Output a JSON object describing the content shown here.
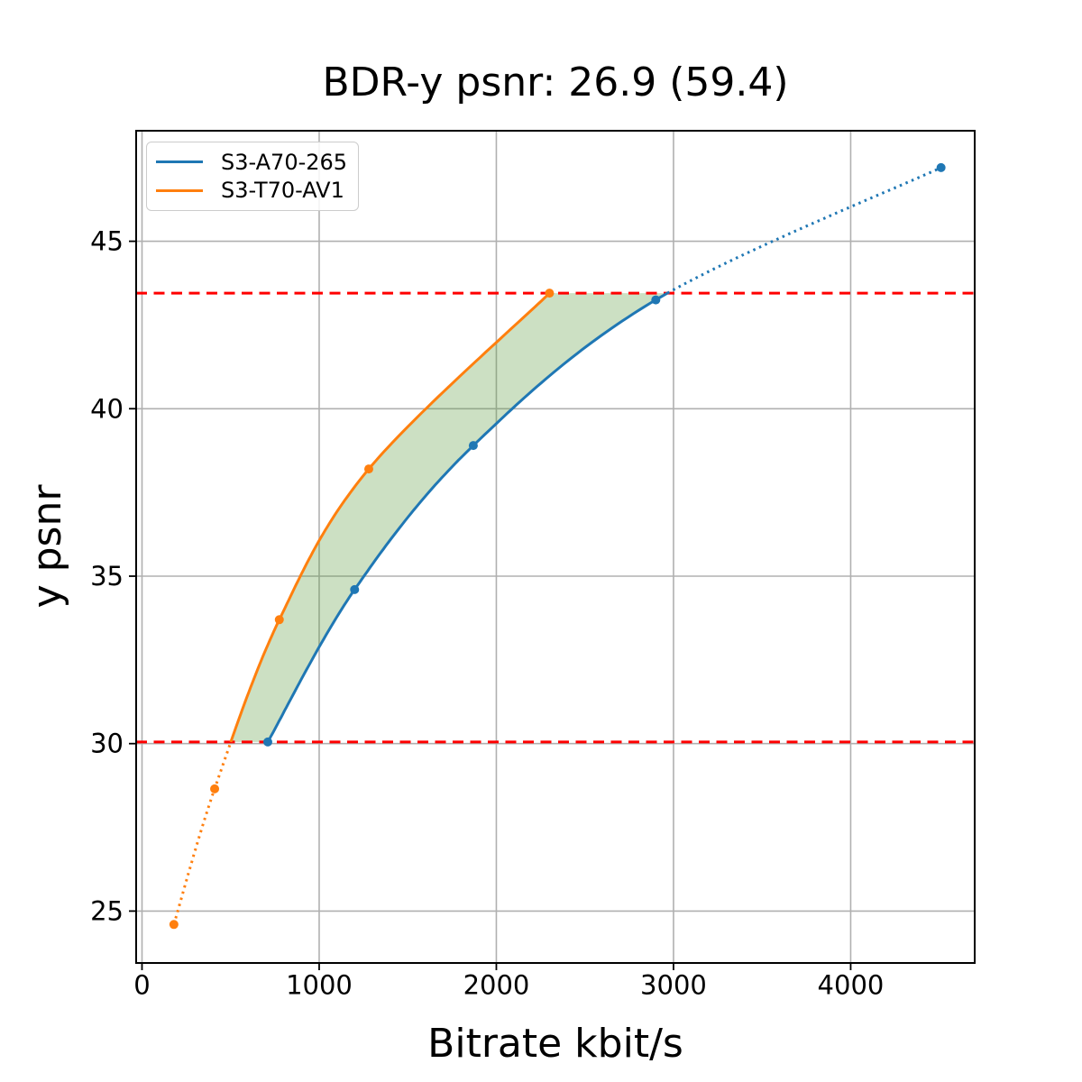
{
  "chart_data": {
    "type": "line",
    "title": "BDR-y psnr: 26.9 (59.4)",
    "bdr_values": {
      "primary": 26.9,
      "secondary": 59.4
    },
    "xlabel": "Bitrate kbit/s",
    "ylabel": "y psnr",
    "xlim": [
      -33,
      4700
    ],
    "ylim": [
      23.45,
      48.3
    ],
    "xticks": [
      0,
      1000,
      2000,
      3000,
      4000
    ],
    "yticks": [
      25,
      30,
      35,
      40,
      45
    ],
    "grid": true,
    "grid_color": "#b0b0b0",
    "legend": {
      "position": "upper-left"
    },
    "series": [
      {
        "name": "S3-A70-265",
        "color": "#1f77b4",
        "marker": "circle",
        "x": [
          710,
          1200,
          1870,
          2900,
          4510
        ],
        "y": [
          30.05,
          34.6,
          38.9,
          43.25,
          47.2
        ]
      },
      {
        "name": "S3-T70-AV1",
        "color": "#ff7f0e",
        "marker": "circle",
        "x": [
          180,
          410,
          775,
          1280,
          2300
        ],
        "y": [
          24.6,
          28.65,
          33.7,
          38.2,
          43.45
        ]
      }
    ],
    "hlines": [
      {
        "y": 30.05,
        "color": "#ff0000",
        "style": "dashed"
      },
      {
        "y": 43.45,
        "color": "#ff0000",
        "style": "dashed"
      }
    ],
    "shaded_region": {
      "between": "curves",
      "y_range": [
        30.05,
        43.45
      ],
      "color": "#559837",
      "alpha": 0.3
    },
    "line_style_note": "curves solid inside overlap range, dotted outside"
  }
}
